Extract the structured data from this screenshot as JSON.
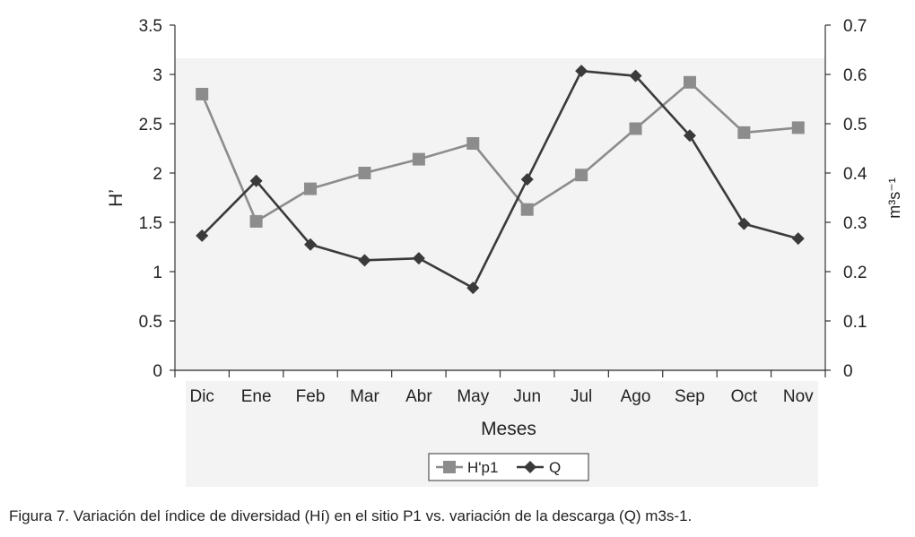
{
  "chart_data": {
    "type": "line",
    "categories": [
      "Dic",
      "Ene",
      "Feb",
      "Mar",
      "Abr",
      "May",
      "Jun",
      "Jul",
      "Ago",
      "Sep",
      "Oct",
      "Nov"
    ],
    "series": [
      {
        "name": "H'p1",
        "axis": "left",
        "color": "#8c8c8c",
        "marker": "square",
        "values": [
          2.8,
          1.51,
          1.84,
          2.0,
          2.14,
          2.3,
          1.63,
          1.98,
          2.45,
          2.92,
          2.41,
          2.46
        ]
      },
      {
        "name": "Q",
        "axis": "right",
        "color": "#3a3a3a",
        "marker": "diamond",
        "values": [
          0.273,
          0.384,
          0.255,
          0.223,
          0.227,
          0.167,
          0.387,
          0.607,
          0.597,
          0.476,
          0.297,
          0.267
        ]
      }
    ],
    "xlabel": "Meses",
    "ylabel": "H’",
    "y2label": "m³s⁻¹",
    "ylim": [
      0,
      3.5
    ],
    "y2lim": [
      0,
      0.7
    ],
    "yticks": [
      "0",
      "0.5",
      "1",
      "1.5",
      "2",
      "2.5",
      "3",
      "3.5"
    ],
    "y2ticks": [
      "0",
      "0.1",
      "0.2",
      "0.3",
      "0.4",
      "0.5",
      "0.6",
      "0.7"
    ],
    "grid": false,
    "legend_position": "bottom-center"
  },
  "caption": "Figura 7. Variación del índice de diversidad (Hí) en el sitio P1 vs. variación de la descarga (Q) m3s-1."
}
